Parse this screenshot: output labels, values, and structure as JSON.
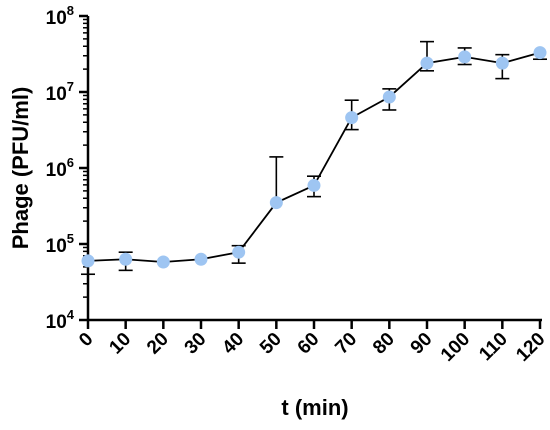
{
  "chart_data": {
    "type": "scatter",
    "title": "",
    "xlabel": "t (min)",
    "ylabel": "Phage (PFU/ml)",
    "y_scale": "log",
    "ylim": [
      10000,
      100000000
    ],
    "xlim": [
      0,
      120
    ],
    "grid": false,
    "x_ticks": [
      "0",
      "10",
      "20",
      "30",
      "40",
      "50",
      "60",
      "70",
      "80",
      "90",
      "100",
      "110",
      "120"
    ],
    "y_ticks": [
      {
        "value": 10000,
        "base": "10",
        "exp": "4"
      },
      {
        "value": 100000,
        "base": "10",
        "exp": "5"
      },
      {
        "value": 1000000,
        "base": "10",
        "exp": "6"
      },
      {
        "value": 10000000,
        "base": "10",
        "exp": "7"
      },
      {
        "value": 100000000,
        "base": "10",
        "exp": "8"
      }
    ],
    "series": [
      {
        "color": "#9ec5f2",
        "points": [
          {
            "x": 0,
            "y": 60000,
            "err_low": 40000,
            "err_high": 60000
          },
          {
            "x": 10,
            "y": 63000,
            "err_low": 45000,
            "err_high": 78000
          },
          {
            "x": 20,
            "y": 58000,
            "err_low": 58000,
            "err_high": 58000
          },
          {
            "x": 30,
            "y": 63000,
            "err_low": 63000,
            "err_high": 63000
          },
          {
            "x": 40,
            "y": 78000,
            "err_low": 56000,
            "err_high": 95000
          },
          {
            "x": 50,
            "y": 350000,
            "err_low": 350000,
            "err_high": 1400000
          },
          {
            "x": 60,
            "y": 590000,
            "err_low": 420000,
            "err_high": 780000
          },
          {
            "x": 70,
            "y": 4600000,
            "err_low": 3200000,
            "err_high": 7800000
          },
          {
            "x": 80,
            "y": 8600000,
            "err_low": 5800000,
            "err_high": 11000000
          },
          {
            "x": 90,
            "y": 24000000,
            "err_low": 19000000,
            "err_high": 46000000
          },
          {
            "x": 100,
            "y": 29000000,
            "err_low": 23000000,
            "err_high": 38000000
          },
          {
            "x": 110,
            "y": 24000000,
            "err_low": 15000000,
            "err_high": 31000000
          },
          {
            "x": 120,
            "y": 33000000,
            "err_low": 27000000,
            "err_high": 33000000
          }
        ]
      }
    ]
  }
}
